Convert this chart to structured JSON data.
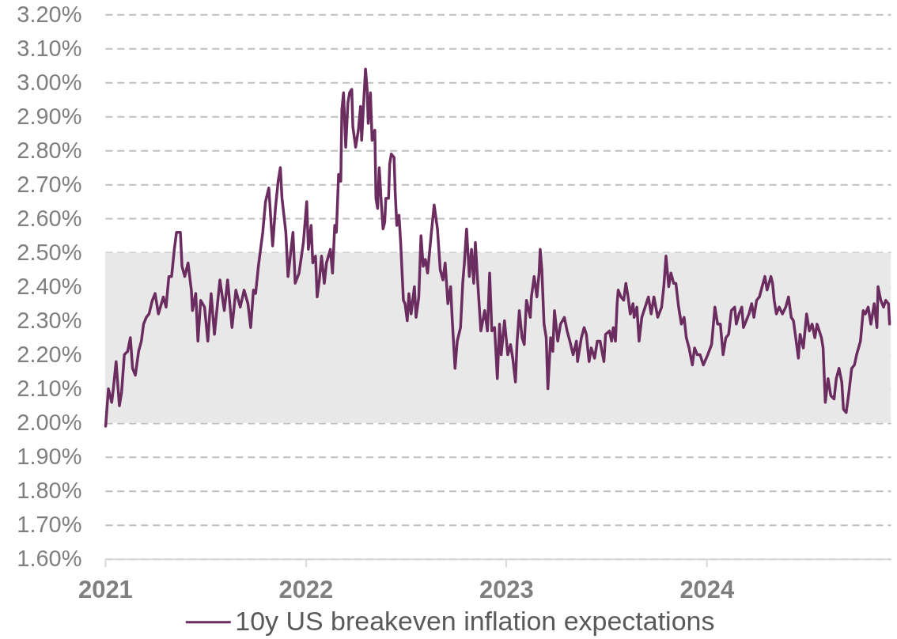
{
  "chart_data": {
    "type": "line",
    "xlim": [
      "2021-01-01",
      "2024-12-01"
    ],
    "xticks": [
      "2021",
      "2022",
      "2023",
      "2024"
    ],
    "ylim": [
      1.6,
      3.2
    ],
    "yticks": [
      {
        "value": 1.6,
        "label": "1.60%"
      },
      {
        "value": 1.7,
        "label": "1.70%"
      },
      {
        "value": 1.8,
        "label": "1.80%"
      },
      {
        "value": 1.9,
        "label": "1.90%"
      },
      {
        "value": 2.0,
        "label": "2.00%"
      },
      {
        "value": 2.1,
        "label": "2.10%"
      },
      {
        "value": 2.2,
        "label": "2.20%"
      },
      {
        "value": 2.3,
        "label": "2.30%"
      },
      {
        "value": 2.4,
        "label": "2.40%"
      },
      {
        "value": 2.5,
        "label": "2.50%"
      },
      {
        "value": 2.6,
        "label": "2.60%"
      },
      {
        "value": 2.7,
        "label": "2.70%"
      },
      {
        "value": 2.8,
        "label": "2.80%"
      },
      {
        "value": 2.9,
        "label": "2.90%"
      },
      {
        "value": 3.0,
        "label": "3.00%"
      },
      {
        "value": 3.1,
        "label": "3.10%"
      },
      {
        "value": 3.2,
        "label": "3.20%"
      }
    ],
    "grid": "y",
    "legend": "bottom",
    "line_style": "solid",
    "bands": [
      {
        "axis": "y",
        "from": 2.0,
        "to": 2.5,
        "color": "#e8e8e8"
      }
    ],
    "x": [
      "2021-01-02",
      "2021-01-07",
      "2021-01-13",
      "2021-01-16",
      "2021-01-21",
      "2021-01-27",
      "2021-01-31",
      "2021-02-05",
      "2021-02-11",
      "2021-02-16",
      "2021-02-20",
      "2021-02-25",
      "2021-03-03",
      "2021-03-08",
      "2021-03-12",
      "2021-03-17",
      "2021-03-22",
      "2021-03-28",
      "2021-04-02",
      "2021-04-08",
      "2021-04-17",
      "2021-04-22",
      "2021-04-27",
      "2021-05-02",
      "2021-05-07",
      "2021-05-11",
      "2021-05-18",
      "2021-05-21",
      "2021-05-26",
      "2021-06-01",
      "2021-06-07",
      "2021-06-09",
      "2021-06-15",
      "2021-06-19",
      "2021-06-24",
      "2021-07-01",
      "2021-07-07",
      "2021-07-13",
      "2021-07-19",
      "2021-07-29",
      "2021-08-06",
      "2021-08-12",
      "2021-08-20",
      "2021-08-27",
      "2021-09-04",
      "2021-09-11",
      "2021-09-18",
      "2021-09-23",
      "2021-09-28",
      "2021-10-02",
      "2021-10-07",
      "2021-10-11",
      "2021-10-15",
      "2021-10-20",
      "2021-10-26",
      "2021-10-30",
      "2021-11-02",
      "2021-11-07",
      "2021-11-12",
      "2021-11-16",
      "2021-11-19",
      "2021-11-26",
      "2021-11-30",
      "2021-12-09",
      "2021-12-13",
      "2021-12-20",
      "2021-12-28",
      "2022-01-03",
      "2022-01-06",
      "2022-01-11",
      "2022-01-14",
      "2022-01-19",
      "2022-01-22",
      "2022-01-26",
      "2022-01-30",
      "2022-02-04",
      "2022-02-08",
      "2022-02-15",
      "2022-02-19",
      "2022-02-23",
      "2022-02-26",
      "2022-03-02",
      "2022-03-06",
      "2022-03-08",
      "2022-03-11",
      "2022-03-15",
      "2022-03-19",
      "2022-03-22",
      "2022-03-26",
      "2022-03-28",
      "2022-04-02",
      "2022-04-07",
      "2022-04-11",
      "2022-04-13",
      "2022-04-17",
      "2022-04-20",
      "2022-04-23",
      "2022-04-25",
      "2022-04-29",
      "2022-05-02",
      "2022-05-07",
      "2022-05-09",
      "2022-05-12",
      "2022-05-15",
      "2022-05-19",
      "2022-05-22",
      "2022-05-25",
      "2022-05-27",
      "2022-06-01",
      "2022-06-03",
      "2022-06-06",
      "2022-06-11",
      "2022-06-13",
      "2022-06-16",
      "2022-06-20",
      "2022-06-23",
      "2022-06-28",
      "2022-07-01",
      "2022-07-05",
      "2022-07-08",
      "2022-07-12",
      "2022-07-18",
      "2022-07-21",
      "2022-07-26",
      "2022-07-30",
      "2022-08-03",
      "2022-08-07",
      "2022-08-11",
      "2022-08-18",
      "2022-08-23",
      "2022-08-29",
      "2022-09-03",
      "2022-09-08",
      "2022-09-12",
      "2022-09-17",
      "2022-09-22",
      "2022-09-25",
      "2022-09-30",
      "2022-10-04",
      "2022-10-10",
      "2022-10-14",
      "2022-10-17",
      "2022-10-21",
      "2022-10-26",
      "2022-10-30",
      "2022-11-03",
      "2022-11-06",
      "2022-11-10",
      "2022-11-16",
      "2022-11-23",
      "2022-11-28",
      "2022-12-02",
      "2022-12-06",
      "2022-12-11",
      "2022-12-16",
      "2022-12-20",
      "2022-12-23",
      "2022-12-29",
      "2023-01-04",
      "2023-01-09",
      "2023-01-13",
      "2023-01-18",
      "2023-01-21",
      "2023-01-25",
      "2023-01-30",
      "2023-02-03",
      "2023-02-07",
      "2023-02-14",
      "2023-02-16",
      "2023-02-21",
      "2023-02-26",
      "2023-03-02",
      "2023-03-04",
      "2023-03-07",
      "2023-03-11",
      "2023-03-15",
      "2023-03-18",
      "2023-03-23",
      "2023-03-27",
      "2023-03-30",
      "2023-04-05",
      "2023-04-10",
      "2023-04-17",
      "2023-04-22",
      "2023-04-27",
      "2023-05-03",
      "2023-05-09",
      "2023-05-11",
      "2023-05-18",
      "2023-05-23",
      "2023-05-27",
      "2023-06-01",
      "2023-06-05",
      "2023-06-11",
      "2023-06-16",
      "2023-06-21",
      "2023-06-28",
      "2023-07-01",
      "2023-07-08",
      "2023-07-12",
      "2023-07-15",
      "2023-07-19",
      "2023-07-22",
      "2023-07-24",
      "2023-07-29",
      "2023-08-03",
      "2023-08-07",
      "2023-08-11",
      "2023-08-15",
      "2023-08-20",
      "2023-08-22",
      "2023-08-27",
      "2023-08-31",
      "2023-09-05",
      "2023-09-11",
      "2023-09-17",
      "2023-09-22",
      "2023-09-27",
      "2023-10-04",
      "2023-10-11",
      "2023-10-15",
      "2023-10-19",
      "2023-10-24",
      "2023-10-28",
      "2023-11-02",
      "2023-11-06",
      "2023-11-11",
      "2023-11-16",
      "2023-11-21",
      "2023-11-25",
      "2023-11-30",
      "2023-12-06",
      "2023-12-10",
      "2023-12-15",
      "2023-12-20",
      "2023-12-26",
      "2024-01-03",
      "2024-01-10",
      "2024-01-16",
      "2024-01-21",
      "2024-01-26",
      "2024-01-31",
      "2024-02-05",
      "2024-02-10",
      "2024-02-15",
      "2024-02-21",
      "2024-02-24",
      "2024-02-29",
      "2024-03-05",
      "2024-03-08",
      "2024-03-13",
      "2024-03-18",
      "2024-03-23",
      "2024-03-27",
      "2024-04-01",
      "2024-04-06",
      "2024-04-11",
      "2024-04-16",
      "2024-04-20",
      "2024-04-27",
      "2024-04-30",
      "2024-05-03",
      "2024-05-07",
      "2024-05-12",
      "2024-05-18",
      "2024-05-24",
      "2024-05-29",
      "2024-06-03",
      "2024-06-07",
      "2024-06-12",
      "2024-06-16",
      "2024-06-19",
      "2024-06-25",
      "2024-07-01",
      "2024-07-06",
      "2024-07-11",
      "2024-07-16",
      "2024-07-20",
      "2024-07-28",
      "2024-07-31",
      "2024-08-04",
      "2024-08-09",
      "2024-08-14",
      "2024-08-20",
      "2024-08-24",
      "2024-08-29",
      "2024-09-03",
      "2024-09-06",
      "2024-09-11",
      "2024-09-16",
      "2024-09-21",
      "2024-09-26",
      "2024-09-30",
      "2024-10-07",
      "2024-10-12",
      "2024-10-16",
      "2024-10-21",
      "2024-10-26",
      "2024-11-01",
      "2024-11-06",
      "2024-11-08",
      "2024-11-13",
      "2024-11-18",
      "2024-11-22",
      "2024-11-27",
      "2024-11-29"
    ],
    "series": [
      {
        "name": "10y US breakeven inflation expectations",
        "color": "#6b2c5f",
        "values": [
          1.99,
          2.1,
          2.06,
          2.1,
          2.18,
          2.05,
          2.09,
          2.2,
          2.21,
          2.25,
          2.16,
          2.14,
          2.21,
          2.24,
          2.29,
          2.31,
          2.32,
          2.36,
          2.38,
          2.32,
          2.37,
          2.34,
          2.43,
          2.43,
          2.51,
          2.56,
          2.56,
          2.46,
          2.43,
          2.47,
          2.39,
          2.33,
          2.38,
          2.24,
          2.36,
          2.34,
          2.24,
          2.38,
          2.26,
          2.42,
          2.33,
          2.42,
          2.28,
          2.39,
          2.34,
          2.39,
          2.35,
          2.28,
          2.39,
          2.38,
          2.46,
          2.51,
          2.56,
          2.65,
          2.69,
          2.59,
          2.52,
          2.63,
          2.71,
          2.75,
          2.66,
          2.56,
          2.43,
          2.56,
          2.41,
          2.44,
          2.53,
          2.65,
          2.51,
          2.58,
          2.47,
          2.49,
          2.37,
          2.42,
          2.49,
          2.41,
          2.47,
          2.51,
          2.44,
          2.58,
          2.56,
          2.73,
          2.71,
          2.92,
          2.97,
          2.81,
          2.94,
          2.97,
          2.98,
          2.87,
          2.81,
          2.86,
          2.93,
          2.83,
          2.95,
          3.04,
          2.98,
          2.88,
          2.97,
          2.83,
          2.86,
          2.66,
          2.63,
          2.75,
          2.64,
          2.57,
          2.59,
          2.66,
          2.66,
          2.76,
          2.79,
          2.78,
          2.68,
          2.58,
          2.61,
          2.53,
          2.36,
          2.35,
          2.3,
          2.38,
          2.32,
          2.4,
          2.31,
          2.37,
          2.55,
          2.46,
          2.48,
          2.44,
          2.56,
          2.64,
          2.57,
          2.45,
          2.42,
          2.47,
          2.35,
          2.4,
          2.3,
          2.16,
          2.24,
          2.28,
          2.41,
          2.47,
          2.57,
          2.43,
          2.51,
          2.41,
          2.53,
          2.42,
          2.27,
          2.33,
          2.27,
          2.44,
          2.27,
          2.28,
          2.13,
          2.29,
          2.2,
          2.3,
          2.2,
          2.23,
          2.19,
          2.12,
          2.24,
          2.33,
          2.25,
          2.23,
          2.36,
          2.31,
          2.37,
          2.43,
          2.37,
          2.44,
          2.51,
          2.45,
          2.29,
          2.25,
          2.1,
          2.25,
          2.21,
          2.33,
          2.24,
          2.29,
          2.31,
          2.27,
          2.24,
          2.2,
          2.24,
          2.18,
          2.25,
          2.28,
          2.26,
          2.18,
          2.22,
          2.19,
          2.24,
          2.24,
          2.18,
          2.26,
          2.27,
          2.24,
          2.28,
          2.24,
          2.35,
          2.39,
          2.37,
          2.36,
          2.41,
          2.37,
          2.32,
          2.35,
          2.31,
          2.34,
          2.24,
          2.31,
          2.34,
          2.37,
          2.32,
          2.37,
          2.31,
          2.34,
          2.4,
          2.49,
          2.4,
          2.44,
          2.41,
          2.41,
          2.34,
          2.29,
          2.31,
          2.25,
          2.22,
          2.17,
          2.22,
          2.2,
          2.2,
          2.17,
          2.2,
          2.23,
          2.34,
          2.29,
          2.29,
          2.2,
          2.25,
          2.26,
          2.33,
          2.34,
          2.29,
          2.32,
          2.34,
          2.28,
          2.3,
          2.32,
          2.35,
          2.31,
          2.36,
          2.37,
          2.4,
          2.43,
          2.39,
          2.43,
          2.41,
          2.36,
          2.32,
          2.34,
          2.32,
          2.34,
          2.37,
          2.31,
          2.3,
          2.24,
          2.19,
          2.26,
          2.22,
          2.32,
          2.27,
          2.29,
          2.25,
          2.29,
          2.25,
          2.22,
          2.06,
          2.13,
          2.08,
          2.07,
          2.13,
          2.16,
          2.12,
          2.04,
          2.03,
          2.09,
          2.16,
          2.17,
          2.2,
          2.24,
          2.33,
          2.32,
          2.34,
          2.29,
          2.35,
          2.28,
          2.4,
          2.36,
          2.34,
          2.36,
          2.35,
          2.29
        ]
      }
    ]
  }
}
